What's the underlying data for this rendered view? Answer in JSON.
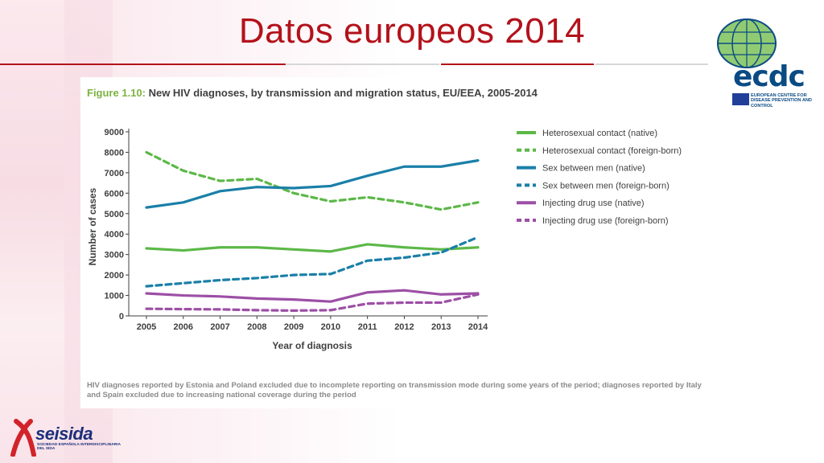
{
  "slide": {
    "title": "Datos europeos 2014"
  },
  "figure": {
    "number": "Figure 1.10:",
    "caption": "New HIV diagnoses, by transmission and migration status, EU/EEA, 2005-2014",
    "footnote": "HIV diagnoses reported by Estonia and Poland excluded due to incomplete reporting on transmission mode during some years of the period; diagnoses reported by Italy and Spain excluded due to increasing national coverage during the period"
  },
  "chart_data": {
    "type": "line",
    "title": "New HIV diagnoses, by transmission and migration status, EU/EEA, 2005-2014",
    "xlabel": "Year of diagnosis",
    "ylabel": "Number of cases",
    "x": [
      2005,
      2006,
      2007,
      2008,
      2009,
      2010,
      2011,
      2012,
      2013,
      2014
    ],
    "x_labels": [
      "2005",
      "2006",
      "2007",
      "2008",
      "2009",
      "2010",
      "2011",
      "2012",
      "2013",
      "2014"
    ],
    "ylim": [
      0,
      9000
    ],
    "y_ticks": [
      0,
      1000,
      2000,
      3000,
      4000,
      5000,
      6000,
      7000,
      8000,
      9000
    ],
    "y_tick_labels": [
      "0",
      "1000",
      "2000",
      "3000",
      "4000",
      "5000",
      "6000",
      "7000",
      "8000",
      "9000"
    ],
    "grid": false,
    "legend_position": "right",
    "series": [
      {
        "name": "Heterosexual contact (native)",
        "color": "#5cb848",
        "dashed": false,
        "values": [
          3300,
          3200,
          3350,
          3350,
          3250,
          3150,
          3500,
          3350,
          3250,
          3350
        ]
      },
      {
        "name": "Heterosexual contact (foreign-born)",
        "color": "#5cb848",
        "dashed": true,
        "values": [
          8000,
          7100,
          6600,
          6700,
          6000,
          5600,
          5800,
          5550,
          5200,
          5550
        ]
      },
      {
        "name": "Sex between men (native)",
        "color": "#1a7fa8",
        "dashed": false,
        "values": [
          5300,
          5550,
          6100,
          6300,
          6250,
          6350,
          6850,
          7300,
          7300,
          7600
        ]
      },
      {
        "name": "Sex between men (foreign-born)",
        "color": "#1a7fa8",
        "dashed": true,
        "values": [
          1450,
          1600,
          1750,
          1850,
          2000,
          2050,
          2700,
          2850,
          3100,
          3850
        ]
      },
      {
        "name": "Injecting drug use (native)",
        "color": "#9c4fa5",
        "dashed": false,
        "values": [
          1100,
          1000,
          950,
          850,
          800,
          700,
          1150,
          1250,
          1050,
          1100
        ]
      },
      {
        "name": "Injecting drug use (foreign-born)",
        "color": "#9c4fa5",
        "dashed": true,
        "values": [
          350,
          330,
          320,
          280,
          260,
          280,
          600,
          650,
          650,
          1050
        ]
      }
    ]
  },
  "logos": {
    "ecdc_mark": "ecdc",
    "ecdc_name": "EUROPEAN CENTRE FOR DISEASE PREVENTION AND CONTROL",
    "seisida_mark": "seisida",
    "seisida_name": "SOCIEDAD ESPAÑOLA INTERDISCIPLINARIA DEL SIDA"
  }
}
